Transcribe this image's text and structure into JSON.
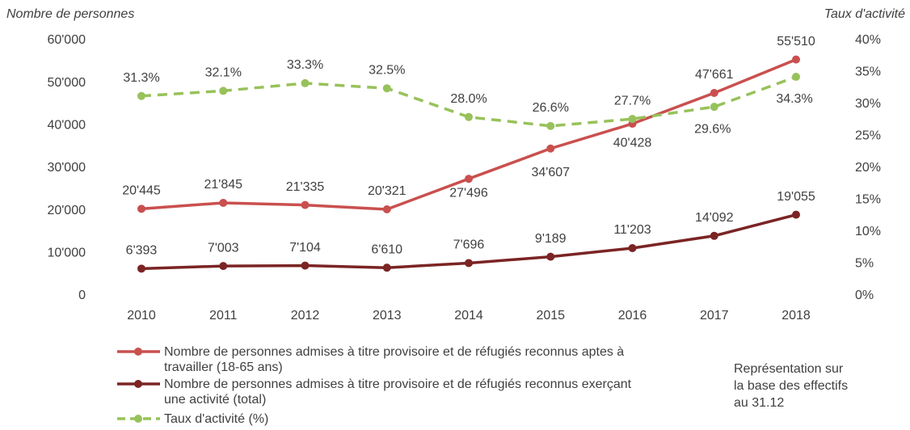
{
  "chart_data": {
    "type": "line",
    "y_axis_label": "Nombre de personnes",
    "y2_axis_label": "Taux d'activité",
    "categories": [
      "2010",
      "2011",
      "2012",
      "2013",
      "2014",
      "2015",
      "2016",
      "2017",
      "2018"
    ],
    "ylim": [
      0,
      60000
    ],
    "yticks": [
      0,
      {
        "value": 10000,
        "label": "10'000"
      },
      {
        "value": 20000,
        "label": "20'000"
      },
      {
        "value": 30000,
        "label": "30'000"
      },
      {
        "value": 40000,
        "label": "40'000"
      },
      {
        "value": 50000,
        "label": "50'000"
      },
      {
        "value": 60000,
        "label": "60'000"
      }
    ],
    "y2lim": [
      0,
      40
    ],
    "y2ticks": [
      {
        "value": 0,
        "label": "0%"
      },
      {
        "value": 5,
        "label": "5%"
      },
      {
        "value": 10,
        "label": "10%"
      },
      {
        "value": 15,
        "label": "15%"
      },
      {
        "value": 20,
        "label": "20%"
      },
      {
        "value": 25,
        "label": "25%"
      },
      {
        "value": 30,
        "label": "30%"
      },
      {
        "value": 35,
        "label": "35%"
      },
      {
        "value": 40,
        "label": "40%"
      }
    ],
    "series": [
      {
        "name": "Nombre de personnes admises à titre provisoire et de réfugiés reconnus aptes à travailler (18-65 ans)",
        "color": "#c9504f",
        "values": [
          20445,
          21845,
          21335,
          20321,
          27496,
          34607,
          40428,
          47661,
          55510
        ],
        "value_labels": [
          "20'445",
          "21'845",
          "21'335",
          "20'321",
          "27'496",
          "34'607",
          "40'428",
          "47'661",
          "55'510"
        ]
      },
      {
        "name": "Nombre de personnes admises à titre provisoire et de réfugiés reconnus exerçant une activité (total)",
        "color": "#7b2424",
        "values": [
          6393,
          7003,
          7104,
          6610,
          7696,
          9189,
          11203,
          14092,
          19055
        ],
        "value_labels": [
          "6'393",
          "7'003",
          "7'104",
          "6'610",
          "7'696",
          "9'189",
          "11'203",
          "14'092",
          "19'055"
        ]
      },
      {
        "name": "Taux d'activité (%)",
        "color": "#97c25a",
        "axis": "y2",
        "dashed": true,
        "values": [
          31.3,
          32.1,
          33.3,
          32.5,
          28,
          26.6,
          27.7,
          29.6,
          34.3
        ],
        "value_labels": [
          "31.3%",
          "32.1%",
          "33.3%",
          "32.5%",
          "28.0%",
          "26.6%",
          "27.7%",
          "29.6%",
          "34.3%"
        ]
      }
    ],
    "annotation": "Représentation sur la base des effectifs au 31.12"
  }
}
